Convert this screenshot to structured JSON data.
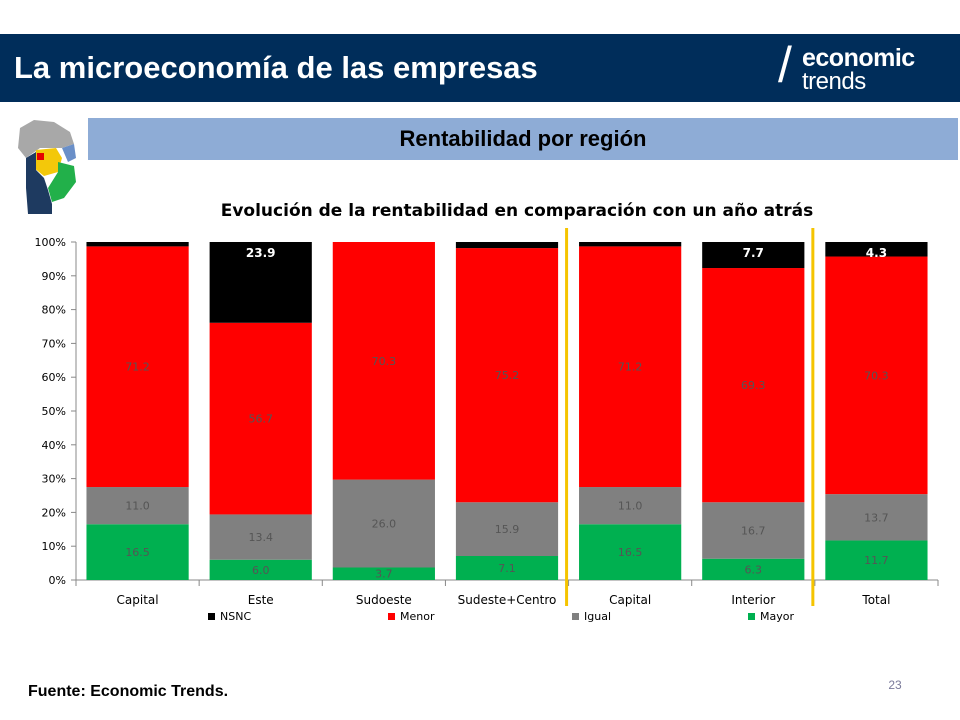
{
  "header": {
    "title": "La microeconomía de las empresas"
  },
  "logo": {
    "slash": "/",
    "top": "economic",
    "bottom": "trends"
  },
  "subtitle": "Rentabilidad por región",
  "map": {
    "icon": "uruguay-regions-map-icon",
    "colors": [
      "#a8a8a8",
      "#6a8fc8",
      "#f3c80a",
      "#22b04a",
      "#1e3a60",
      "#e60000"
    ]
  },
  "chart_data": {
    "type": "bar",
    "stacked": true,
    "normalized": true,
    "title": "Evolución de la rentabilidad en comparación con un año atrás",
    "categories": [
      "Capital",
      "Este",
      "Sudoeste",
      "Sudeste+Centro",
      "Capital",
      "Interior",
      "Total"
    ],
    "ylim": [
      0,
      100
    ],
    "y_ticks": [
      "0%",
      "10%",
      "20%",
      "30%",
      "40%",
      "50%",
      "60%",
      "70%",
      "80%",
      "90%",
      "100%"
    ],
    "series": [
      {
        "name": "Mayor",
        "color": "#00b050",
        "values": [
          16.5,
          6.0,
          3.7,
          7.1,
          16.5,
          6.3,
          11.7
        ],
        "labels": [
          "16.5",
          "6.0",
          "3.7",
          "7.1",
          "16.5",
          "6.3",
          "11.7"
        ]
      },
      {
        "name": "Igual",
        "color": "#808080",
        "values": [
          11.0,
          13.4,
          26.0,
          15.9,
          11.0,
          16.7,
          13.7
        ],
        "labels": [
          "11.0",
          "13.4",
          "26.0",
          "15.9",
          "11.0",
          "16.7",
          "13.7"
        ]
      },
      {
        "name": "Menor",
        "color": "#ff0000",
        "values": [
          71.2,
          56.7,
          70.3,
          75.2,
          71.2,
          69.3,
          70.3
        ],
        "labels": [
          "71.2",
          "56.7",
          "70.3",
          "75.2",
          "71.2",
          "69.3",
          "70.3"
        ]
      },
      {
        "name": "NSNC",
        "color": "#000000",
        "values": [
          1.3,
          23.9,
          0.0,
          1.8,
          1.3,
          7.7,
          4.3
        ],
        "labels": [
          "",
          "23.9",
          "",
          "",
          "",
          "7.7",
          "4.3"
        ]
      }
    ],
    "legend_order": [
      "NSNC",
      "Menor",
      "Igual",
      "Mayor"
    ],
    "legend_position": "bottom",
    "separators_after_index": [
      3,
      5
    ],
    "separator_color": "#f5c400"
  },
  "footer": {
    "source": "Fuente: Economic Trends.",
    "page": "23"
  }
}
